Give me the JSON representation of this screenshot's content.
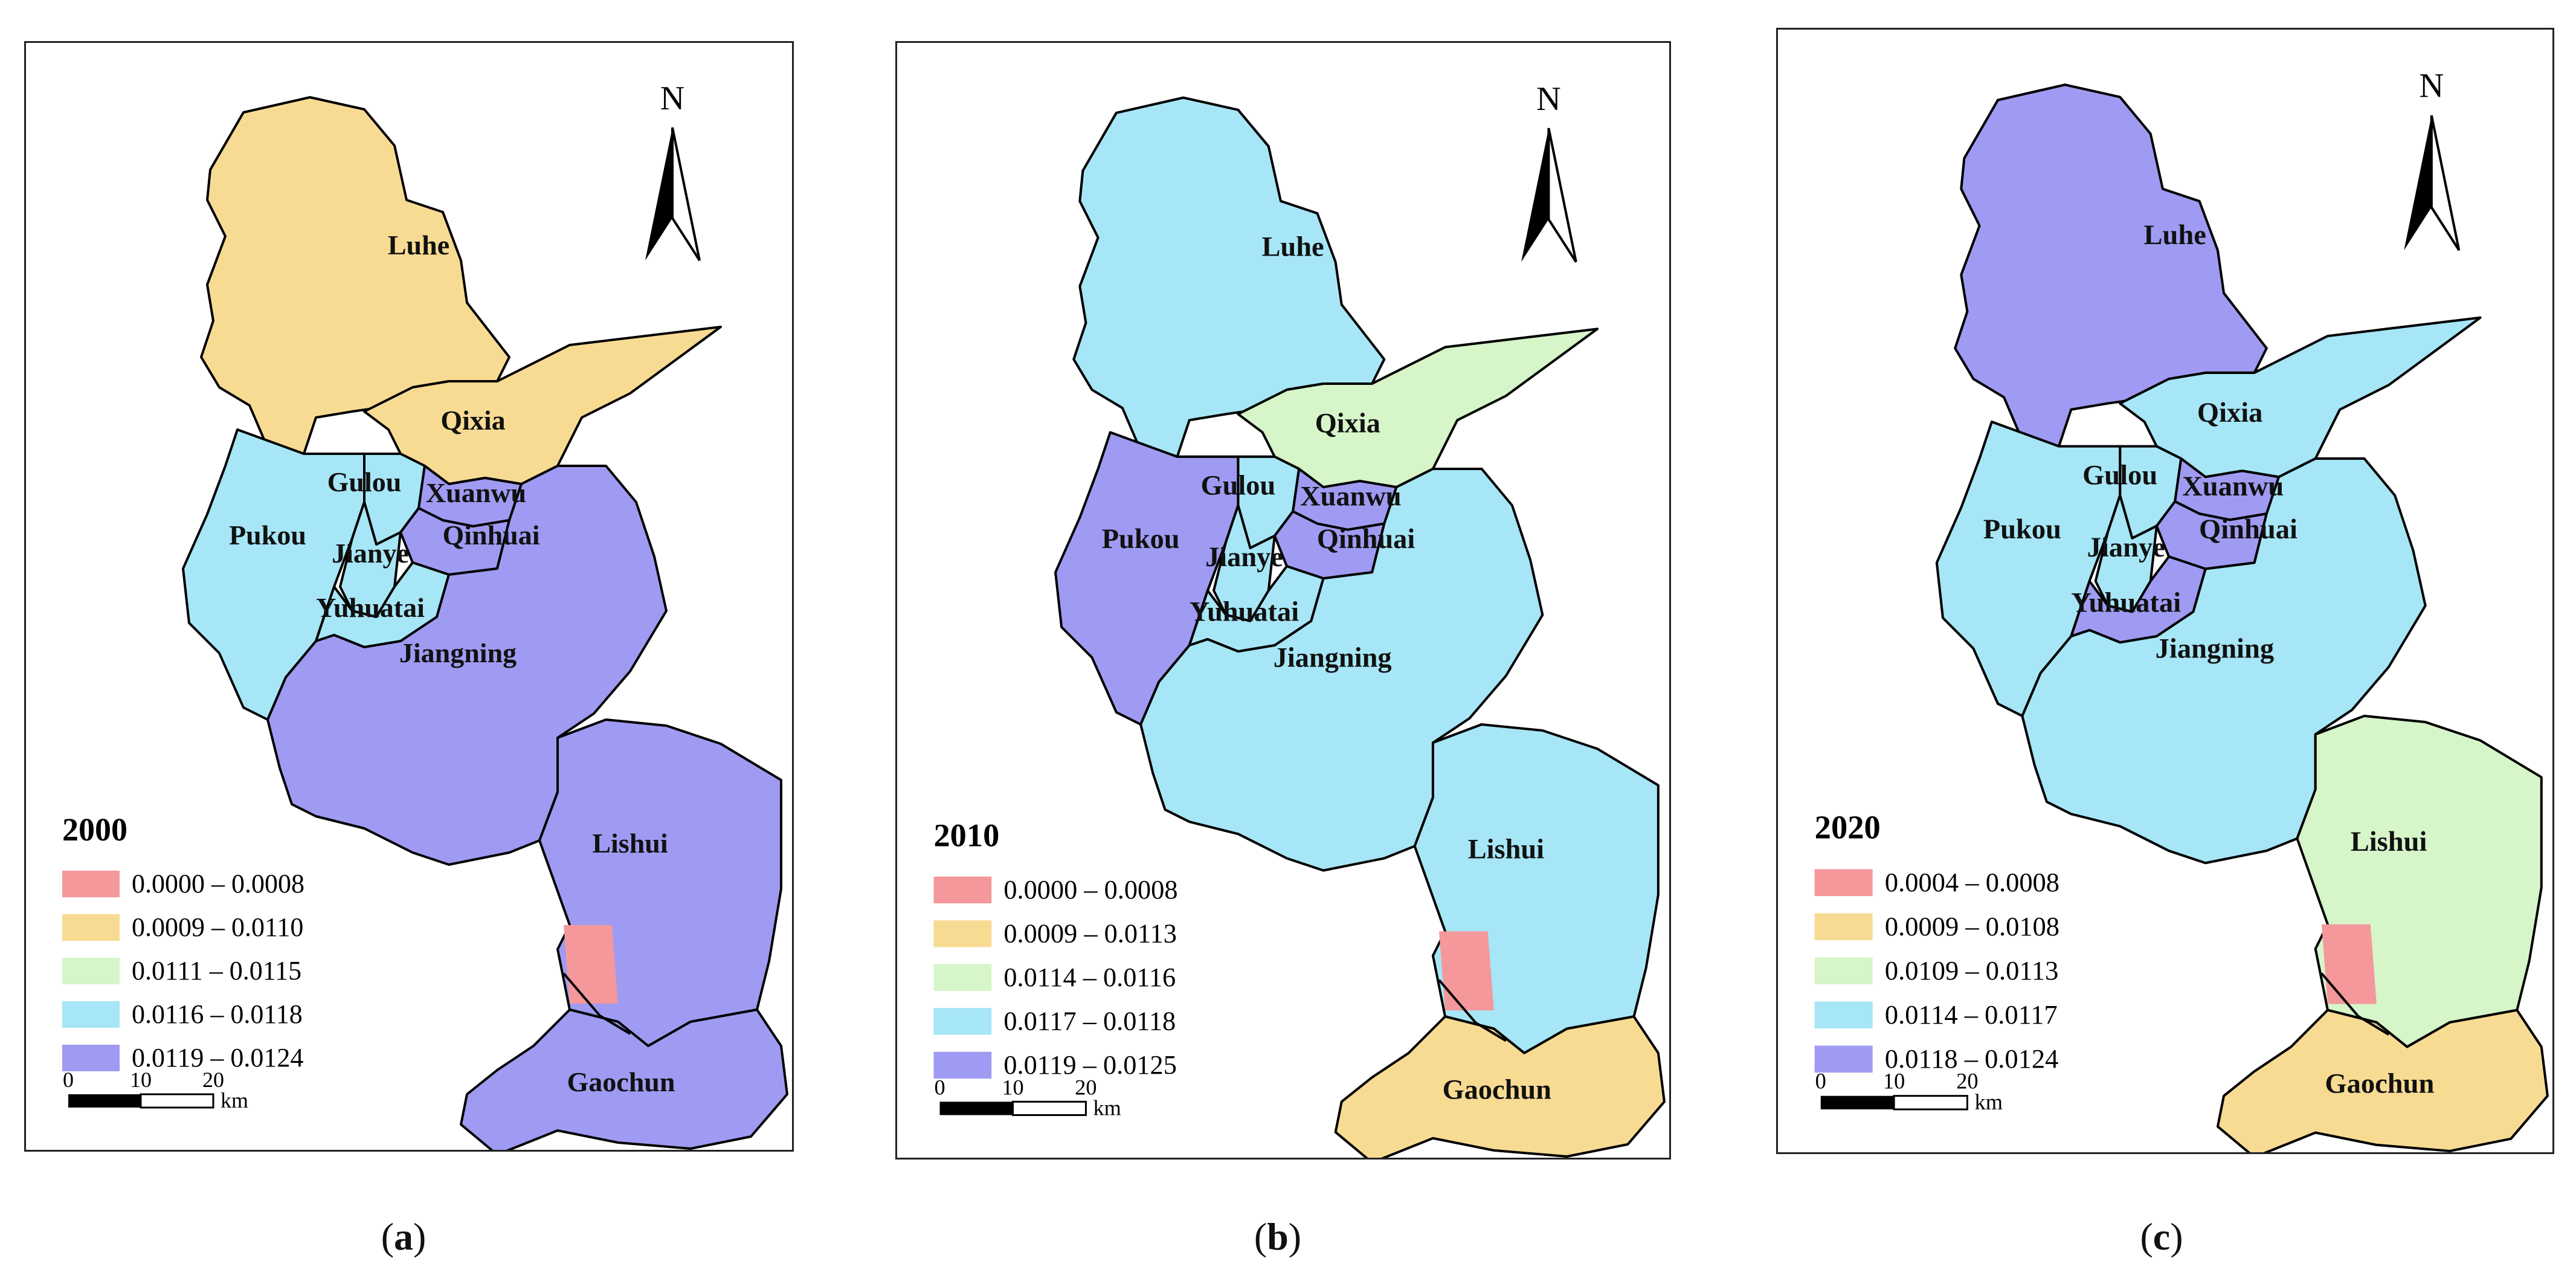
{
  "colors": {
    "class1": "#F4989B",
    "class2": "#F8DB93",
    "class3": "#D6F5C9",
    "class4": "#A6E6F6",
    "class5": "#9F9BF2",
    "boundary": "#000000"
  },
  "north_label": "N",
  "scale": {
    "ticks": [
      "0",
      "10",
      "20"
    ],
    "unit": "km"
  },
  "panels": [
    {
      "caption_letter": "a",
      "year": "2000",
      "districts": [
        "Luhe",
        "Qixia",
        "Gulou",
        "Xuanwu",
        "Pukou",
        "Jianye",
        "Qinhuai",
        "Yuhuatai",
        "Jiangning",
        "Lishui",
        "Gaochun"
      ],
      "legend": [
        "0.0000 – 0.0008",
        "0.0009 – 0.0110",
        "0.0111 – 0.0115",
        "0.0116 – 0.0118",
        "0.0119 – 0.0124"
      ],
      "class_by_district": [
        2,
        2,
        4,
        5,
        4,
        4,
        5,
        4,
        5,
        5,
        5
      ]
    },
    {
      "caption_letter": "b",
      "year": "2010",
      "districts": [
        "Luhe",
        "Qixia",
        "Gulou",
        "Xuanwu",
        "Pukou",
        "Jianye",
        "Qinhuai",
        "Yuhuatai",
        "Jiangning",
        "Lishui",
        "Gaochun"
      ],
      "legend": [
        "0.0000 – 0.0008",
        "0.0009 – 0.0113",
        "0.0114 – 0.0116",
        "0.0117 – 0.0118",
        "0.0119 – 0.0125"
      ],
      "class_by_district": [
        4,
        3,
        4,
        5,
        5,
        4,
        5,
        4,
        4,
        4,
        2
      ]
    },
    {
      "caption_letter": "c",
      "year": "2020",
      "districts": [
        "Luhe",
        "Qixia",
        "Gulou",
        "Xuanwu",
        "Pukou",
        "Jianye",
        "Qinhuai",
        "Yuhuatai",
        "Jiangning",
        "Lishui",
        "Gaochun"
      ],
      "legend": [
        "0.0004 – 0.0008",
        "0.0009 – 0.0108",
        "0.0109 – 0.0113",
        "0.0114 – 0.0117",
        "0.0118 – 0.0124"
      ],
      "class_by_district": [
        5,
        4,
        4,
        5,
        4,
        4,
        5,
        5,
        4,
        3,
        2
      ]
    }
  ]
}
